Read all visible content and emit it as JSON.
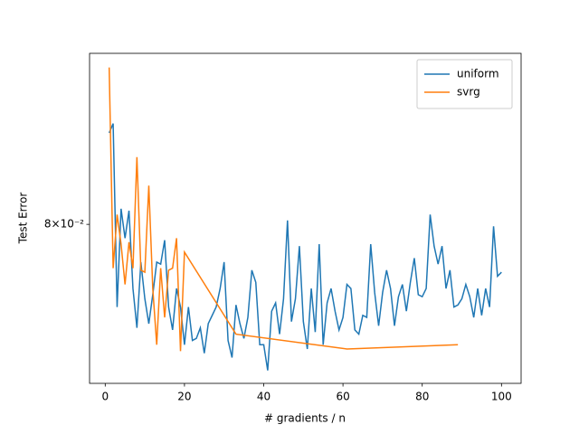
{
  "chart_data": {
    "type": "line",
    "xlabel": "# gradients / n",
    "ylabel": "Test Error",
    "xlim": [
      -3.95,
      104.95
    ],
    "xticks": [
      0,
      20,
      40,
      60,
      80,
      100
    ],
    "ylim": [
      0.0723,
      0.0892
    ],
    "yticks": [
      {
        "value": 0.08,
        "label": "8×10⁻²"
      }
    ],
    "yscale": "log",
    "legend": "upper right",
    "series": [
      {
        "name": "uniform",
        "color": "#1f77b4",
        "x": [
          1,
          2,
          3,
          4,
          5,
          6,
          7,
          8,
          9,
          10,
          11,
          12,
          13,
          14,
          15,
          16,
          17,
          18,
          19,
          20,
          21,
          22,
          23,
          24,
          25,
          26,
          27,
          28,
          29,
          30,
          31,
          32,
          33,
          34,
          35,
          36,
          37,
          38,
          39,
          40,
          41,
          42,
          43,
          44,
          45,
          46,
          47,
          48,
          49,
          50,
          51,
          52,
          53,
          54,
          55,
          56,
          57,
          58,
          59,
          60,
          61,
          62,
          63,
          64,
          65,
          66,
          67,
          68,
          69,
          70,
          71,
          72,
          73,
          74,
          75,
          76,
          77,
          78,
          79,
          80,
          81,
          82,
          83,
          84,
          85,
          86,
          87,
          88,
          89,
          90,
          91,
          92,
          93,
          94,
          95,
          96,
          97,
          98,
          99,
          100
        ],
        "values": [
          0.0848,
          0.0853,
          0.0759,
          0.0808,
          0.0793,
          0.0807,
          0.0768,
          0.0749,
          0.0781,
          0.0763,
          0.0751,
          0.0765,
          0.0781,
          0.078,
          0.0792,
          0.0759,
          0.0748,
          0.0768,
          0.0759,
          0.0741,
          0.0759,
          0.0743,
          0.0744,
          0.0749,
          0.0737,
          0.0751,
          0.0755,
          0.0759,
          0.0768,
          0.0781,
          0.0743,
          0.0735,
          0.076,
          0.0751,
          0.0744,
          0.0754,
          0.0777,
          0.0771,
          0.0741,
          0.0741,
          0.0729,
          0.0757,
          0.0761,
          0.0746,
          0.0763,
          0.0802,
          0.0752,
          0.0763,
          0.0789,
          0.0752,
          0.0739,
          0.0768,
          0.0747,
          0.079,
          0.0741,
          0.0761,
          0.0768,
          0.0757,
          0.0748,
          0.0754,
          0.077,
          0.0768,
          0.0748,
          0.0746,
          0.0755,
          0.0754,
          0.079,
          0.0766,
          0.075,
          0.0766,
          0.0777,
          0.0768,
          0.075,
          0.0764,
          0.077,
          0.0757,
          0.0771,
          0.0783,
          0.0765,
          0.0764,
          0.0768,
          0.0805,
          0.0789,
          0.078,
          0.0789,
          0.0768,
          0.0777,
          0.0759,
          0.076,
          0.0763,
          0.077,
          0.0764,
          0.0754,
          0.0768,
          0.0755,
          0.0768,
          0.0759,
          0.0799,
          0.0774,
          0.0776
        ]
      },
      {
        "name": "svrg",
        "color": "#ff7f0e",
        "x": [
          1,
          2,
          3,
          4,
          5,
          6,
          7,
          8,
          9,
          10,
          11,
          12,
          13,
          14,
          15,
          16,
          17,
          18,
          19,
          20,
          33,
          61,
          89
        ],
        "values": [
          0.0884,
          0.0778,
          0.0805,
          0.079,
          0.077,
          0.0791,
          0.0778,
          0.0835,
          0.0777,
          0.0776,
          0.082,
          0.0768,
          0.0741,
          0.0778,
          0.0754,
          0.0777,
          0.0778,
          0.0793,
          0.0738,
          0.0786,
          0.0746,
          0.0739,
          0.0741
        ]
      }
    ]
  }
}
